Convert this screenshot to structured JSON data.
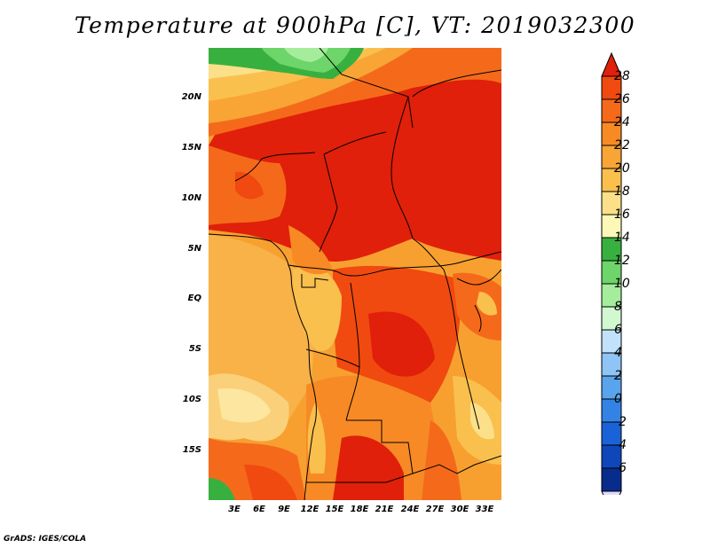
{
  "title": "Temperature at 900hPa [C], VT: 2019032300",
  "credit": "GrADS: IGES/COLA",
  "map": {
    "region": "Central Africa",
    "lon_range": [
      0,
      35
    ],
    "lat_range": [
      -20,
      24
    ],
    "lat_ticks": [
      "20N",
      "15N",
      "10N",
      "5N",
      "EQ",
      "5S",
      "10S",
      "15S"
    ],
    "lon_ticks": [
      "3E",
      "6E",
      "9E",
      "12E",
      "15E",
      "18E",
      "21E",
      "24E",
      "27E",
      "30E",
      "33E"
    ]
  },
  "colorbar": {
    "labels": [
      "28",
      "26",
      "24",
      "22",
      "20",
      "18",
      "16",
      "14",
      "12",
      "10",
      "8",
      "6",
      "4",
      "2",
      "0",
      "-2",
      "-4",
      "-6"
    ],
    "colors": [
      "#e0200a",
      "#f04a10",
      "#f56a1a",
      "#f78a25",
      "#f8a535",
      "#fac04e",
      "#fbe089",
      "#fdf7b8",
      "#38b040",
      "#6dd56a",
      "#a5ec9c",
      "#d2f8d0",
      "#c2e2fb",
      "#8ec4f6",
      "#5aa4ee",
      "#3483e4",
      "#1a62d8",
      "#0f47bb",
      "#082c8c",
      "#dcdcf8"
    ]
  }
}
